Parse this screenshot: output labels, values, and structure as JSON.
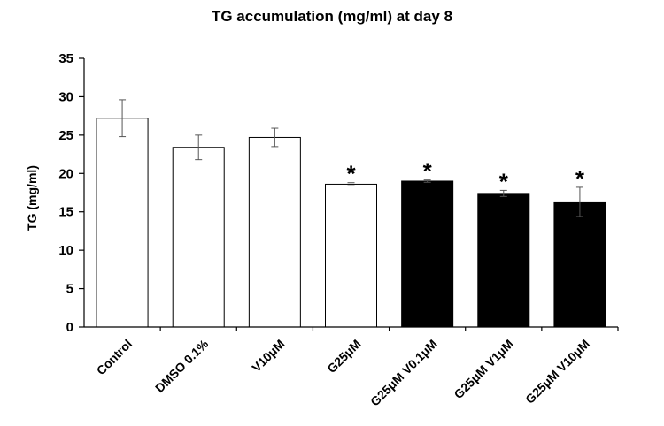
{
  "chart_data": {
    "type": "bar",
    "title": "TG accumulation (mg/ml) at day 8",
    "xlabel": "",
    "ylabel": "TG (mg/ml)",
    "ylim": [
      0,
      35
    ],
    "yticks": [
      0,
      5,
      10,
      15,
      20,
      25,
      30,
      35
    ],
    "categories": [
      "Control",
      "DMSO 0.1%",
      "V10μM",
      "G25μM",
      "G25μM V0.1μM",
      "G25μM V1μM",
      "G25μM V10μM"
    ],
    "values": [
      27.2,
      23.4,
      24.7,
      18.6,
      19.0,
      17.4,
      16.3
    ],
    "errors": [
      2.4,
      1.6,
      1.2,
      0.2,
      0.15,
      0.4,
      1.9
    ],
    "fill_colors": [
      "#ffffff",
      "#ffffff",
      "#ffffff",
      "#ffffff",
      "#000000",
      "#000000",
      "#000000"
    ],
    "significance": [
      "",
      "",
      "",
      "*",
      "*",
      "*",
      "*"
    ],
    "grid": false,
    "legend": "none"
  }
}
